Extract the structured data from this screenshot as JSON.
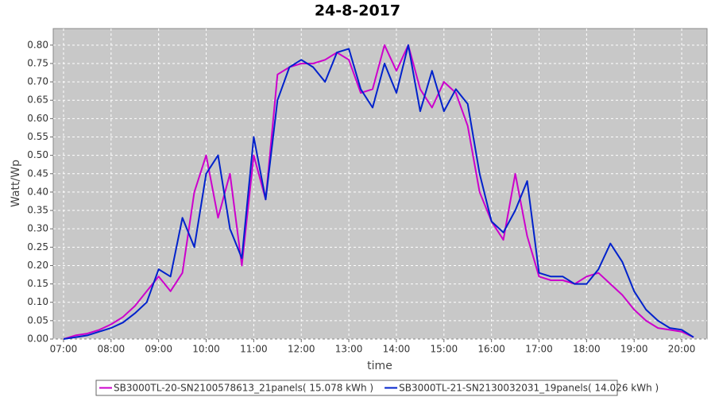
{
  "chart_data": {
    "type": "line",
    "title": "24-8-2017",
    "x_label": "time",
    "y_label": "Watt/Wp",
    "x": [
      "07:00",
      "07:15",
      "07:30",
      "07:45",
      "08:00",
      "08:15",
      "08:30",
      "08:45",
      "09:00",
      "09:15",
      "09:30",
      "09:45",
      "10:00",
      "10:15",
      "10:30",
      "10:45",
      "11:00",
      "11:15",
      "11:30",
      "11:45",
      "12:00",
      "12:15",
      "12:30",
      "12:45",
      "13:00",
      "13:15",
      "13:30",
      "13:45",
      "14:00",
      "14:15",
      "14:30",
      "14:45",
      "15:00",
      "15:15",
      "15:30",
      "15:45",
      "16:00",
      "16:15",
      "16:30",
      "16:45",
      "17:00",
      "17:15",
      "17:30",
      "17:45",
      "18:00",
      "18:15",
      "18:30",
      "18:45",
      "19:00",
      "19:15",
      "19:30",
      "19:45",
      "20:00",
      "20:15"
    ],
    "series": [
      {
        "name": "SB3000TL-20-SN2100578613_21panels( 15.078 kWh )",
        "color": "#cc00cc",
        "values": [
          0,
          0.01,
          0.015,
          0.025,
          0.04,
          0.06,
          0.09,
          0.13,
          0.17,
          0.13,
          0.18,
          0.4,
          0.5,
          0.33,
          0.45,
          0.2,
          0.5,
          0.38,
          0.72,
          0.74,
          0.75,
          0.75,
          0.76,
          0.78,
          0.76,
          0.67,
          0.68,
          0.8,
          0.73,
          0.8,
          0.68,
          0.63,
          0.7,
          0.67,
          0.58,
          0.4,
          0.32,
          0.27,
          0.45,
          0.28,
          0.17,
          0.16,
          0.16,
          0.15,
          0.17,
          0.18,
          0.15,
          0.12,
          0.08,
          0.05,
          0.03,
          0.025,
          0.02,
          0.005
        ]
      },
      {
        "name": "SB3000TL-21-SN2130032031_19panels( 14.026 kWh )",
        "color": "#0022cc",
        "values": [
          0,
          0.005,
          0.01,
          0.02,
          0.03,
          0.045,
          0.07,
          0.1,
          0.19,
          0.17,
          0.33,
          0.25,
          0.45,
          0.5,
          0.3,
          0.22,
          0.55,
          0.38,
          0.65,
          0.74,
          0.76,
          0.74,
          0.7,
          0.78,
          0.79,
          0.68,
          0.63,
          0.75,
          0.67,
          0.8,
          0.62,
          0.73,
          0.62,
          0.68,
          0.64,
          0.45,
          0.32,
          0.29,
          0.35,
          0.43,
          0.18,
          0.17,
          0.17,
          0.15,
          0.15,
          0.19,
          0.26,
          0.21,
          0.13,
          0.08,
          0.05,
          0.03,
          0.025,
          0.005
        ]
      }
    ],
    "xlim": [
      "06:47",
      "20:32"
    ],
    "xticks": [
      "07:00",
      "08:00",
      "09:00",
      "10:00",
      "11:00",
      "12:00",
      "13:00",
      "14:00",
      "15:00",
      "16:00",
      "17:00",
      "18:00",
      "19:00",
      "20:00"
    ],
    "ylim": [
      0,
      0.845
    ],
    "yticks": [
      {
        "value": 0,
        "label": "0.00"
      },
      {
        "value": 0.05,
        "label": "0.05"
      },
      {
        "value": 0.1,
        "label": "0.10"
      },
      {
        "value": 0.15,
        "label": "0.15"
      },
      {
        "value": 0.2,
        "label": "0.20"
      },
      {
        "value": 0.25,
        "label": "0.25"
      },
      {
        "value": 0.3,
        "label": "0.30"
      },
      {
        "value": 0.35,
        "label": "0.35"
      },
      {
        "value": 0.4,
        "label": "0.40"
      },
      {
        "value": 0.45,
        "label": "0.45"
      },
      {
        "value": 0.5,
        "label": "0.50"
      },
      {
        "value": 0.55,
        "label": "0.55"
      },
      {
        "value": 0.6,
        "label": "0.60"
      },
      {
        "value": 0.65,
        "label": "0.65"
      },
      {
        "value": 0.7,
        "label": "0.70"
      },
      {
        "value": 0.75,
        "label": "0.75"
      },
      {
        "value": 0.8,
        "label": "0.80"
      }
    ],
    "grid": true,
    "legend": "bottom"
  }
}
